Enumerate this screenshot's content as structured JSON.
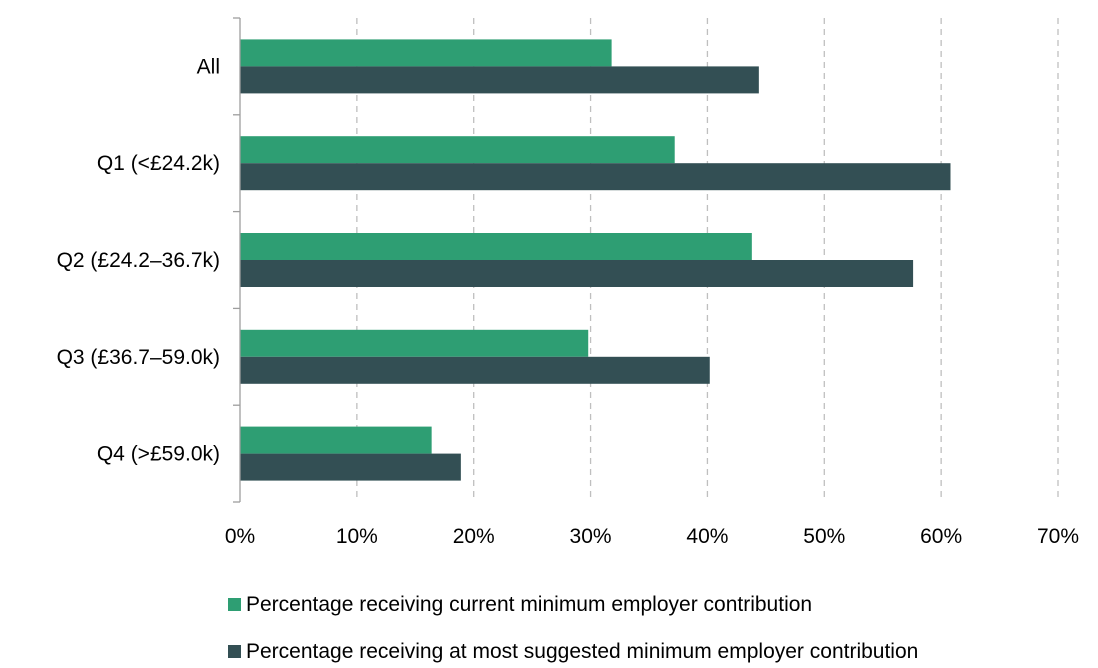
{
  "chart_data": {
    "type": "bar",
    "orientation": "horizontal",
    "categories": [
      "All",
      "Q1 (<£24.2k)",
      "Q2 (£24.2–36.7k)",
      "Q3 (£36.7–59.0k)",
      "Q4 (>£59.0k)"
    ],
    "series": [
      {
        "name": "Percentage receiving current minimum employer contribution",
        "color": "#2e9e73",
        "values": [
          31.8,
          37.2,
          43.8,
          29.8,
          16.4
        ]
      },
      {
        "name": "Percentage receiving at most suggested minimum employer contribution",
        "color": "#334f54",
        "values": [
          44.4,
          60.8,
          57.6,
          40.2,
          18.9
        ]
      }
    ],
    "x_ticks": [
      "0%",
      "10%",
      "20%",
      "30%",
      "40%",
      "50%",
      "60%",
      "70%"
    ],
    "xlim": [
      0,
      70
    ],
    "grid": "vertical dashed",
    "legend_position": "bottom"
  }
}
